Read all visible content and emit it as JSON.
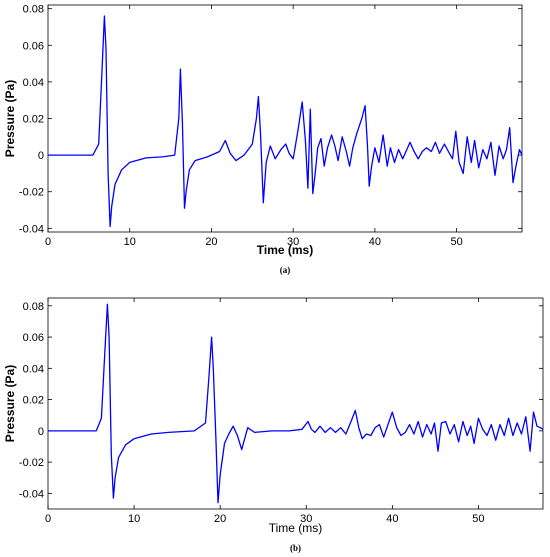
{
  "chart_data": [
    {
      "type": "line",
      "panel": "a",
      "caption": "(a)",
      "xlabel": "Time (ms)",
      "ylabel": "Pressure (Pa)",
      "xlim": [
        0,
        58
      ],
      "ylim": [
        -0.042,
        0.082
      ],
      "x_ticks": [
        "0",
        "10",
        "20",
        "30",
        "40",
        "50"
      ],
      "y_ticks": [
        "-0.04",
        "-0.02",
        "0",
        "0.02",
        "0.04",
        "0.06",
        "0.08"
      ],
      "x_tick_values": [
        0,
        10,
        20,
        30,
        40,
        50
      ],
      "y_tick_values": [
        -0.04,
        -0.02,
        0,
        0.02,
        0.04,
        0.06,
        0.08
      ],
      "color": "#0000ff",
      "series": [
        {
          "x": [
            0,
            5.5,
            6.2,
            6.6,
            6.9,
            7.1,
            7.35,
            7.6,
            7.8,
            8.2,
            9,
            10,
            12,
            14,
            15.5,
            16.0,
            16.2,
            16.45,
            16.7,
            16.9,
            17.3,
            18,
            19.5,
            21.0,
            21.7,
            22.3,
            23,
            24,
            25,
            25.5,
            25.75,
            26.0,
            26.35,
            26.7,
            27.2,
            27.8,
            28.5,
            29.1,
            29.5,
            30.0,
            30.6,
            31.1,
            31.5,
            31.8,
            32.1,
            32.4,
            32.7,
            33.0,
            33.4,
            33.8,
            34.2,
            34.7,
            35.1,
            35.5,
            36.0,
            36.5,
            36.9,
            37.3,
            37.8,
            38.4,
            38.8,
            39.1,
            39.3,
            39.6,
            40.0,
            40.5,
            41.0,
            41.5,
            41.9,
            42.4,
            42.9,
            43.4,
            43.9,
            44.3,
            44.8,
            45.3,
            45.8,
            46.3,
            46.9,
            47.4,
            47.9,
            48.5,
            49.0,
            49.5,
            49.9,
            50.3,
            50.8,
            51.3,
            51.8,
            52.2,
            52.7,
            53.2,
            53.7,
            54.2,
            54.7,
            55.2,
            55.7,
            56.1,
            56.5,
            56.9,
            57.3,
            57.7,
            58.0
          ],
          "y": [
            0,
            0,
            0.006,
            0.045,
            0.076,
            0.058,
            -0.01,
            -0.039,
            -0.028,
            -0.016,
            -0.008,
            -0.004,
            -0.0015,
            -0.001,
            0,
            0.02,
            0.047,
            0.018,
            -0.029,
            -0.02,
            -0.008,
            -0.003,
            -0.001,
            0.002,
            0.008,
            0.001,
            -0.003,
            0,
            0.006,
            0.02,
            0.032,
            0.012,
            -0.026,
            -0.004,
            0.005,
            -0.002,
            0.003,
            0.006,
            0.001,
            -0.002,
            0.014,
            0.029,
            0.008,
            -0.018,
            0.025,
            -0.021,
            -0.01,
            0.004,
            0.009,
            -0.006,
            0.004,
            0.011,
            0.005,
            -0.003,
            0.01,
            0.002,
            -0.006,
            0.004,
            0.012,
            0.02,
            0.027,
            0.005,
            -0.017,
            -0.006,
            0.004,
            -0.004,
            0.011,
            -0.006,
            0.004,
            -0.004,
            0.003,
            -0.002,
            0.003,
            0.007,
            0.002,
            -0.002,
            0.002,
            0.004,
            0.002,
            0.007,
            0.001,
            0.006,
            0.002,
            -0.002,
            0.013,
            -0.004,
            -0.01,
            0.01,
            -0.004,
            0.008,
            -0.007,
            0.003,
            -0.002,
            0.007,
            -0.011,
            0.005,
            -0.002,
            0.003,
            0.015,
            -0.015,
            -0.005,
            0.003,
            0
          ]
        }
      ]
    },
    {
      "type": "line",
      "panel": "b",
      "caption": "(b)",
      "xlabel": "Time (ms)",
      "ylabel": "Pressure (Pa)",
      "xlim": [
        0,
        57.5
      ],
      "ylim": [
        -0.05,
        0.085
      ],
      "x_ticks": [
        "0",
        "10",
        "20",
        "30",
        "40",
        "50"
      ],
      "y_ticks": [
        "-0.04",
        "-0.02",
        "0",
        "0.02",
        "0.04",
        "0.06",
        "0.08"
      ],
      "x_tick_values": [
        0,
        10,
        20,
        30,
        40,
        50
      ],
      "y_tick_values": [
        -0.04,
        -0.02,
        0,
        0.02,
        0.04,
        0.06,
        0.08
      ],
      "color": "#0000ff",
      "series": [
        {
          "x": [
            0,
            5.6,
            6.2,
            6.6,
            6.9,
            7.1,
            7.35,
            7.6,
            7.8,
            8.2,
            9,
            10,
            12,
            14,
            17,
            18.3,
            18.7,
            19.0,
            19.2,
            19.5,
            19.75,
            20.0,
            20.5,
            21.0,
            21.5,
            22.0,
            22.5,
            23.2,
            24,
            26,
            28,
            29.5,
            30.2,
            30.6,
            31.0,
            31.6,
            32.2,
            32.8,
            33.4,
            34.0,
            34.6,
            35.2,
            35.7,
            36.1,
            36.5,
            37.0,
            37.5,
            38.0,
            38.5,
            39.0,
            39.5,
            40.0,
            40.5,
            41.0,
            41.5,
            42.0,
            42.5,
            43.0,
            43.5,
            44.0,
            44.5,
            44.9,
            45.3,
            45.7,
            46.2,
            46.7,
            47.2,
            47.7,
            48.2,
            48.7,
            49.1,
            49.5,
            50.0,
            50.5,
            51.0,
            51.5,
            52.0,
            52.5,
            53.0,
            53.5,
            54.0,
            54.5,
            55.0,
            55.5,
            56.0,
            56.4,
            56.8,
            57.2,
            57.5
          ],
          "y": [
            0,
            0,
            0.008,
            0.05,
            0.081,
            0.06,
            -0.015,
            -0.043,
            -0.03,
            -0.017,
            -0.009,
            -0.005,
            -0.002,
            -0.001,
            0,
            0.005,
            0.035,
            0.06,
            0.04,
            -0.005,
            -0.046,
            -0.028,
            -0.008,
            -0.002,
            0.003,
            -0.003,
            -0.012,
            0.002,
            -0.001,
            0,
            0,
            0.001,
            0.006,
            0.001,
            -0.001,
            0.003,
            -0.001,
            0.002,
            -0.001,
            0.002,
            -0.002,
            0.006,
            0.013,
            0.002,
            -0.005,
            -0.002,
            -0.003,
            0.002,
            0.004,
            -0.004,
            0.004,
            0.012,
            0.002,
            -0.003,
            -0.001,
            0.004,
            -0.002,
            0.006,
            -0.004,
            0.004,
            -0.002,
            0.005,
            -0.013,
            0.005,
            0.006,
            -0.002,
            0.004,
            -0.007,
            0.006,
            -0.003,
            0.003,
            -0.008,
            0.008,
            0.001,
            -0.003,
            0.004,
            -0.006,
            0.004,
            -0.003,
            0.008,
            -0.003,
            0.005,
            -0.002,
            0.009,
            -0.013,
            0.012,
            0.003,
            0.002,
            0.001
          ]
        }
      ]
    }
  ]
}
